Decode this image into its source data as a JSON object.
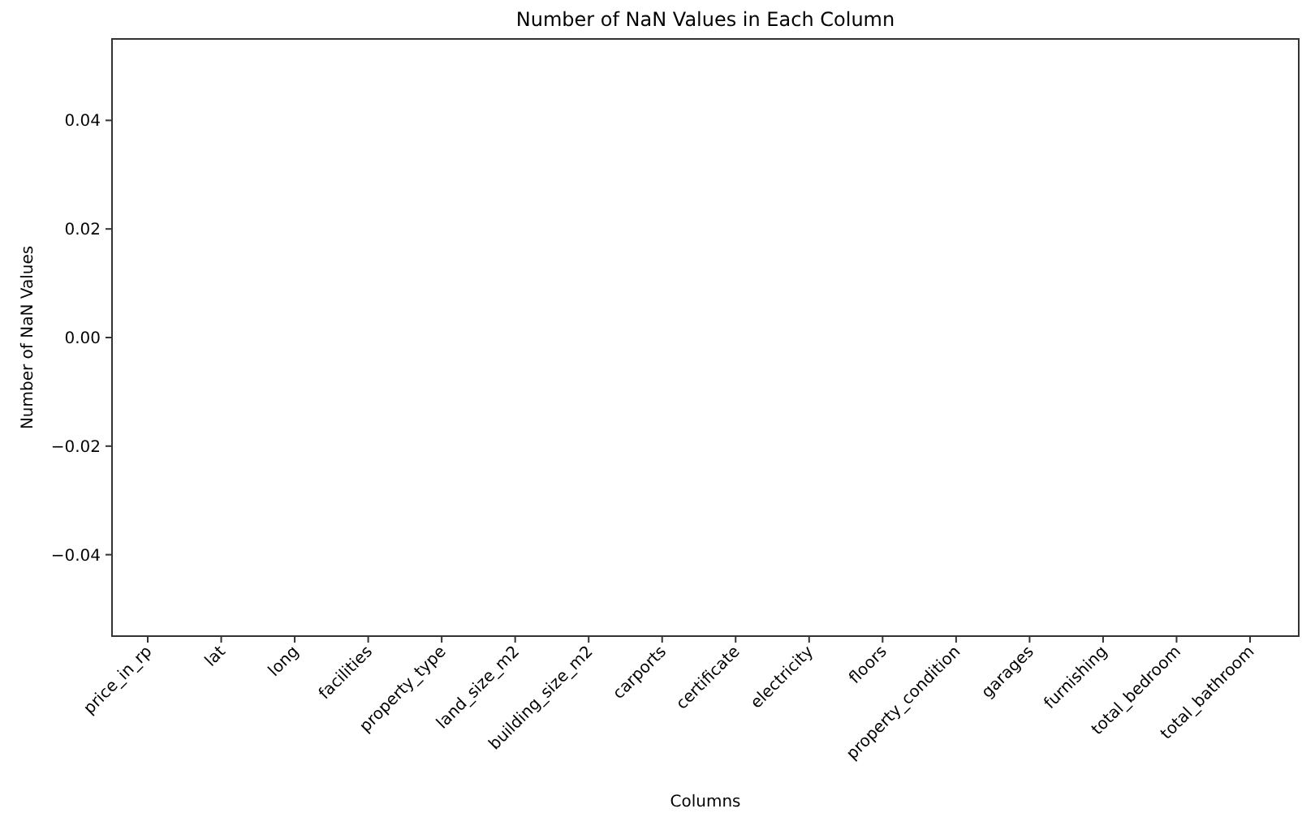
{
  "chart_data": {
    "type": "bar",
    "title": "Number of NaN Values in Each Column",
    "xlabel": "Columns",
    "ylabel": "Number of NaN Values",
    "categories": [
      "price_in_rp",
      "lat",
      "long",
      "facilities",
      "property_type",
      "land_size_m2",
      "building_size_m2",
      "carports",
      "certificate",
      "electricity",
      "floors",
      "property_condition",
      "garages",
      "furnishing",
      "total_bedroom",
      "total_bathroom"
    ],
    "values": [
      0,
      0,
      0,
      0,
      0,
      0,
      0,
      0,
      0,
      0,
      0,
      0,
      0,
      0,
      0,
      0
    ],
    "ylim": [
      -0.055,
      0.055
    ],
    "yticks": [
      {
        "value": -0.04,
        "label": "−0.04"
      },
      {
        "value": -0.02,
        "label": "−0.02"
      },
      {
        "value": 0,
        "label": "0.00"
      },
      {
        "value": 0.02,
        "label": "0.02"
      },
      {
        "value": 0.04,
        "label": "0.04"
      }
    ]
  }
}
